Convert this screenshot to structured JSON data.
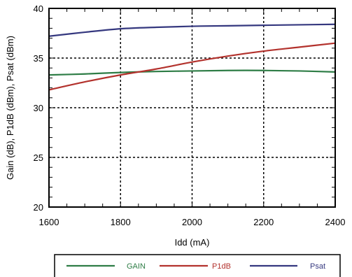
{
  "chart_data": {
    "type": "line",
    "title": "",
    "xlabel": "Idd (mA)",
    "ylabel": "Gain (dB), P1dB (dBm), Psat (dBm)",
    "xlim": [
      1600,
      2400
    ],
    "ylim": [
      20,
      40
    ],
    "x_ticks": [
      1600,
      1800,
      2000,
      2200,
      2400
    ],
    "y_ticks": [
      20,
      25,
      30,
      35,
      40
    ],
    "x_tick_labels": [
      "1600",
      "1800",
      "2000",
      "2200",
      "2400"
    ],
    "y_tick_labels": [
      "20",
      "25",
      "30",
      "35",
      "40"
    ],
    "grid": "dashed",
    "legend_position": "bottom",
    "x": [
      1600,
      1700,
      1800,
      1900,
      2000,
      2100,
      2200,
      2300,
      2400
    ],
    "series": [
      {
        "name": "GAIN",
        "color": "#2e7d46",
        "values": [
          33.3,
          33.4,
          33.55,
          33.65,
          33.7,
          33.75,
          33.75,
          33.7,
          33.6
        ]
      },
      {
        "name": "P1dB",
        "color": "#b3322d",
        "values": [
          31.8,
          32.6,
          33.3,
          33.9,
          34.6,
          35.2,
          35.7,
          36.1,
          36.5
        ]
      },
      {
        "name": "Psat",
        "color": "#35387f",
        "values": [
          37.2,
          37.6,
          37.95,
          38.1,
          38.2,
          38.25,
          38.3,
          38.35,
          38.4
        ]
      }
    ]
  }
}
